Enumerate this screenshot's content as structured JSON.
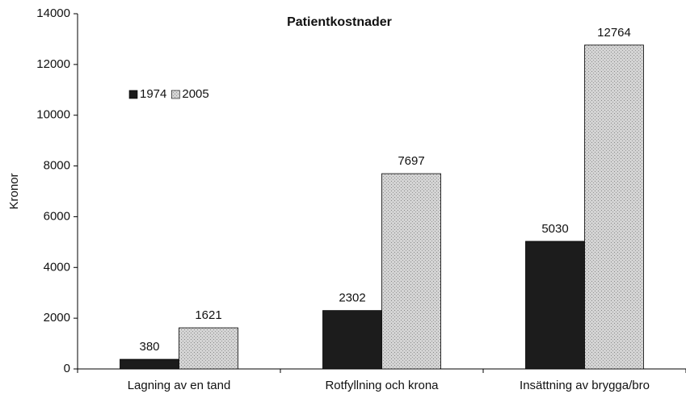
{
  "chart_data": {
    "type": "bar",
    "title": "Patientkostnader",
    "y_label": "Kronor",
    "categories": [
      "Lagning av en tand",
      "Rotfyllning och krona",
      "Insättning av brygga/bro"
    ],
    "series": [
      {
        "name": "1974",
        "color": "#1c1c1c",
        "values": [
          380,
          2302,
          5030
        ]
      },
      {
        "name": "2005",
        "color": "#d4d4d4",
        "values": [
          1621,
          7697,
          12764
        ]
      }
    ],
    "ylim": [
      0,
      14000
    ],
    "yticks": [
      0,
      2000,
      4000,
      6000,
      8000,
      10000,
      12000,
      14000
    ],
    "grid": false,
    "legend": "upper left"
  }
}
